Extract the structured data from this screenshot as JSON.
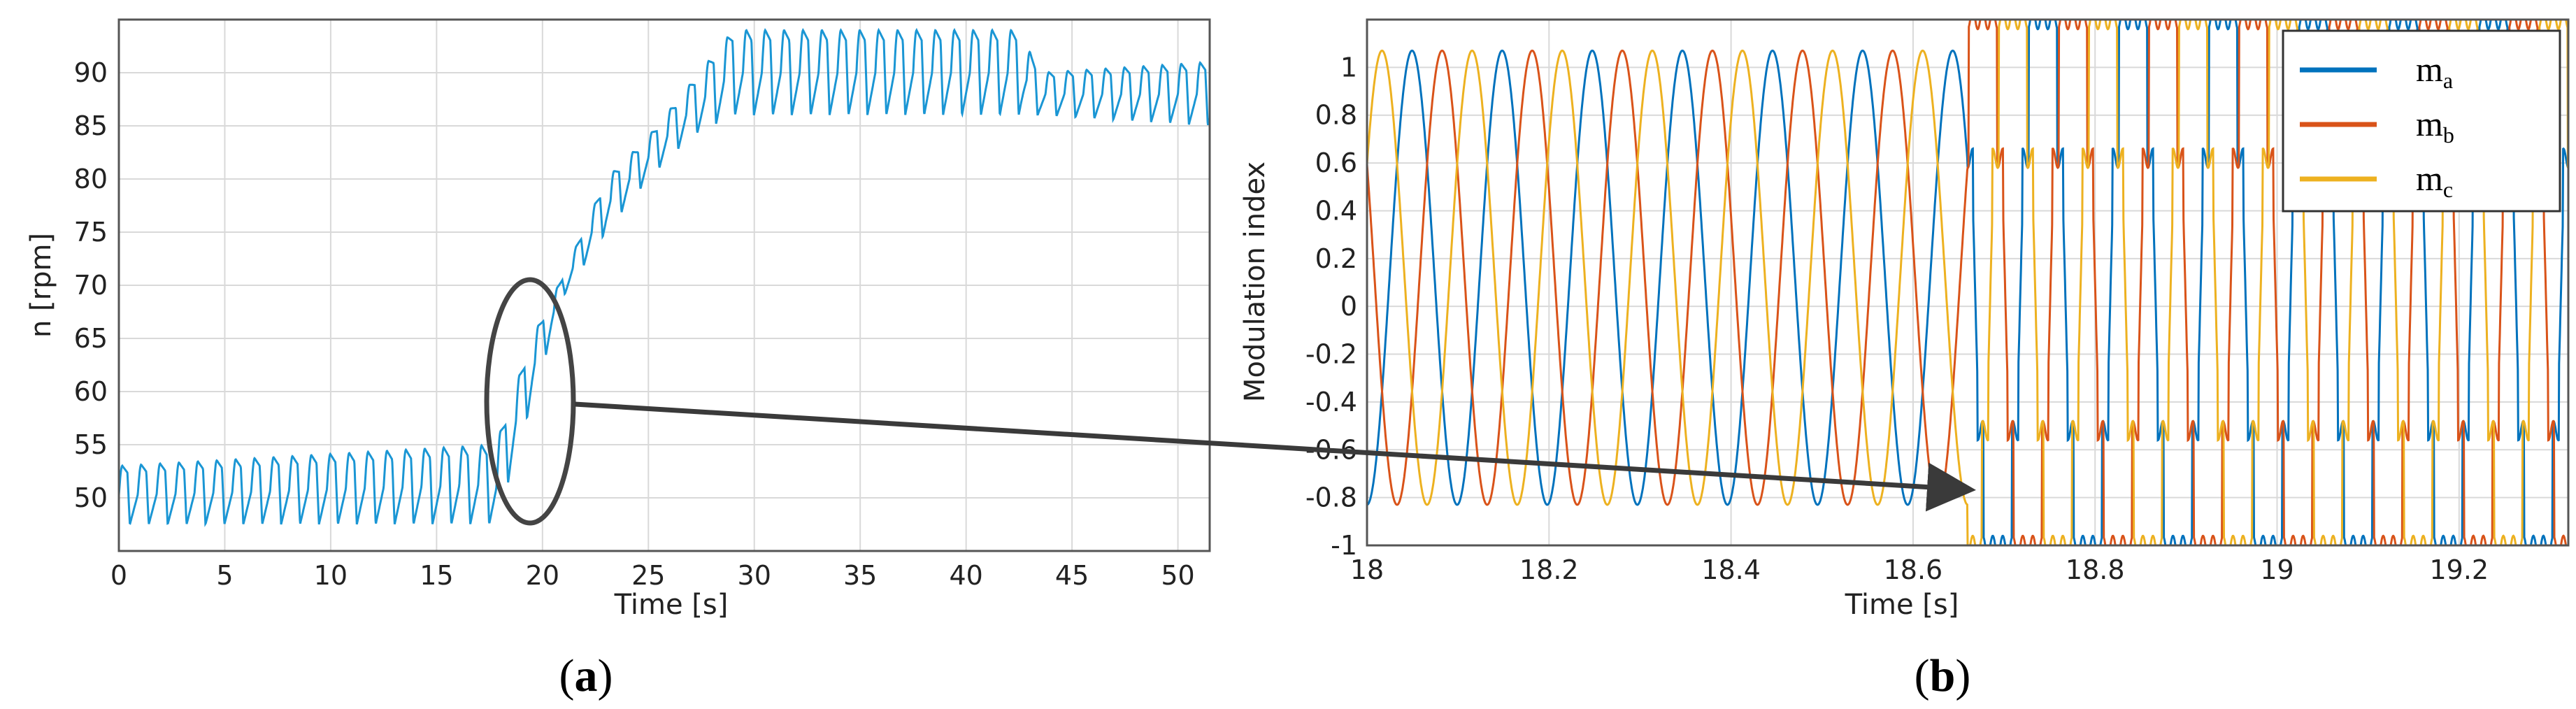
{
  "chart_data": [
    {
      "panel": "a",
      "type": "line",
      "caption": "(a)",
      "xlabel": "Time [s]",
      "ylabel": "n [rpm]",
      "xlim": [
        0,
        51.5
      ],
      "ylim": [
        45,
        95
      ],
      "xticks": [
        0,
        5,
        10,
        15,
        20,
        25,
        30,
        35,
        40,
        45,
        50
      ],
      "yticks": [
        50,
        55,
        60,
        65,
        70,
        75,
        80,
        85,
        90
      ],
      "grid": true,
      "colors": {
        "speed": "#1a96d4"
      },
      "series": [
        {
          "name": "",
          "sampled_envelope": [
            {
              "x": 0,
              "low": 47.5,
              "high": 53
            },
            {
              "x": 17.8,
              "low": 47.5,
              "high": 55
            },
            {
              "x": 19.5,
              "low": 59,
              "high": 65
            },
            {
              "x": 21,
              "low": 69,
              "high": 71
            },
            {
              "x": 23,
              "low": 75,
              "high": 80
            },
            {
              "x": 25,
              "low": 80,
              "high": 84
            },
            {
              "x": 27,
              "low": 84,
              "high": 89
            },
            {
              "x": 29,
              "low": 86,
              "high": 94
            },
            {
              "x": 35,
              "low": 86,
              "high": 94
            },
            {
              "x": 42.5,
              "low": 86,
              "high": 94
            },
            {
              "x": 43.5,
              "low": 86,
              "high": 90
            },
            {
              "x": 51.5,
              "low": 85,
              "high": 91
            }
          ]
        }
      ],
      "annotations": [
        {
          "type": "ellipse",
          "center_x": 19.5,
          "center_y": 59,
          "note": "zoomed region",
          "target_panel": "b"
        }
      ]
    },
    {
      "panel": "b",
      "type": "line",
      "caption": "(b)",
      "xlabel": "Time [s]",
      "ylabel": "Modulation index",
      "xlim": [
        18,
        19.32
      ],
      "ylim": [
        -1,
        1.2
      ],
      "xticks": [
        18,
        18.2,
        18.4,
        18.6,
        18.8,
        19,
        19.2
      ],
      "yticks": [
        -1,
        -0.8,
        -0.6,
        -0.4,
        -0.2,
        0,
        0.2,
        0.4,
        0.6,
        0.8,
        1
      ],
      "ytick_labels": [
        "-1",
        "-0.8",
        "-0.6",
        "-0.4",
        "-0.2",
        "0",
        "0.2",
        "0.4",
        "0.6",
        "0.8",
        "1"
      ],
      "grid": true,
      "legend": {
        "position": "top-right",
        "entries": [
          {
            "base": "m",
            "sub": "a",
            "color": "#0072bd"
          },
          {
            "base": "m",
            "sub": "b",
            "color": "#d95319"
          },
          {
            "base": "m",
            "sub": "c",
            "color": "#edb120"
          }
        ]
      },
      "series": [
        {
          "name": "ma",
          "amplitude": 0.95,
          "offset": 0.12,
          "frequency_hz": 10.1,
          "phase_deg": -90,
          "saturated_after_x": 18.66
        },
        {
          "name": "mb",
          "amplitude": 0.95,
          "offset": 0.12,
          "frequency_hz": 10.1,
          "phase_deg": 150,
          "saturated_after_x": 18.66
        },
        {
          "name": "mc",
          "amplitude": 0.95,
          "offset": 0.12,
          "frequency_hz": 10.1,
          "phase_deg": 30,
          "saturated_after_x": 18.66
        }
      ],
      "saturated_levels": {
        "upper": 0.62,
        "lower": -0.52,
        "clip_min": -1,
        "clip_max": 1.2
      }
    }
  ]
}
